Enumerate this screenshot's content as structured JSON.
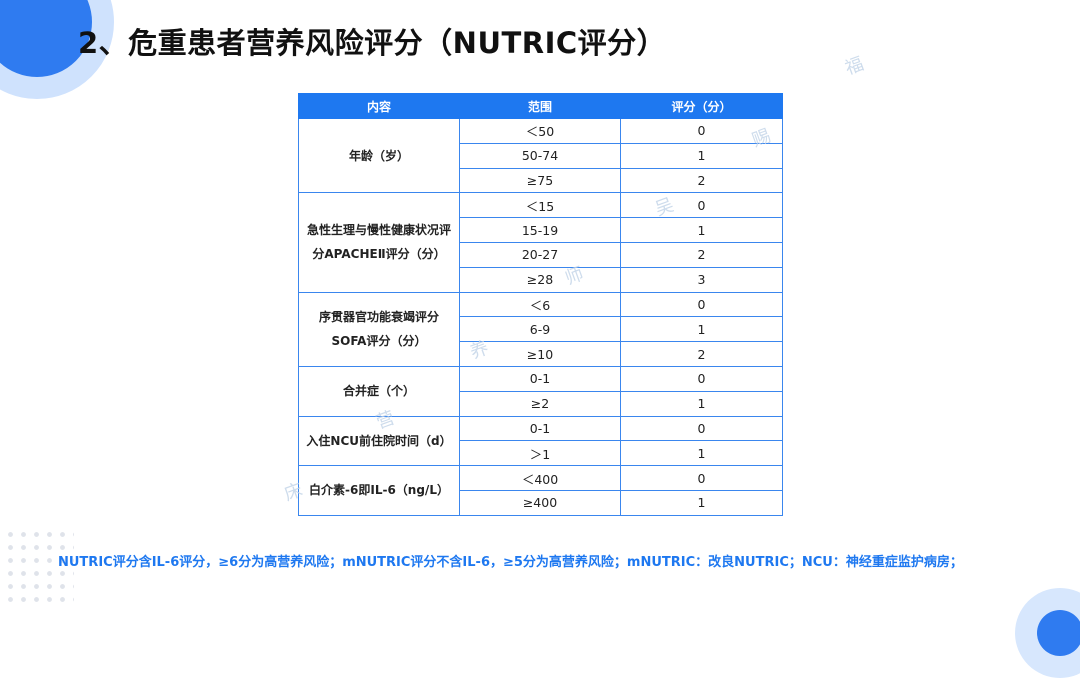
{
  "title": "2、危重患者营养风险评分（NUTRIC评分）",
  "table": {
    "headers": [
      "内容",
      "范围",
      "评分（分）"
    ],
    "groups": [
      {
        "item_lines": [
          "年龄（岁）"
        ],
        "rows": [
          [
            "＜50",
            "0"
          ],
          [
            "50-74",
            "1"
          ],
          [
            "≥75",
            "2"
          ]
        ]
      },
      {
        "item_lines": [
          "急性生理与慢性健康状况评",
          "分APACHEⅡ评分（分）"
        ],
        "rows": [
          [
            "＜15",
            "0"
          ],
          [
            "15-19",
            "1"
          ],
          [
            "20-27",
            "2"
          ],
          [
            "≥28",
            "3"
          ]
        ]
      },
      {
        "item_lines": [
          "序贯器官功能衰竭评分",
          "SOFA评分（分）"
        ],
        "rows": [
          [
            "＜6",
            "0"
          ],
          [
            "6-9",
            "1"
          ],
          [
            "≥10",
            "2"
          ]
        ]
      },
      {
        "item_lines": [
          "合并症（个）"
        ],
        "rows": [
          [
            "0-1",
            "0"
          ],
          [
            "≥2",
            "1"
          ]
        ]
      },
      {
        "item_lines": [
          "入住NCU前住院时间（d）"
        ],
        "rows": [
          [
            "0-1",
            "0"
          ],
          [
            "＞1",
            "1"
          ]
        ]
      },
      {
        "item_lines": [
          "白介素-6即IL-6（ng/L）"
        ],
        "rows": [
          [
            "＜400",
            "0"
          ],
          [
            "≥400",
            "1"
          ]
        ]
      }
    ]
  },
  "footnote": "NUTRIC评分含IL-6评分，≥6分为高营养风险；mNUTRIC评分不含IL-6，≥5分为高营养风险；mNUTRIC：改良NUTRIC；NCU：神经重症监护病房；",
  "watermark_chars": [
    "福",
    "赐",
    "吴",
    "师",
    "养",
    "营",
    "床"
  ],
  "colors": {
    "header_bg": "#1e78f0",
    "border": "#3a86ee",
    "footnote": "#1e78f0",
    "accent": "#2f7bf0"
  }
}
